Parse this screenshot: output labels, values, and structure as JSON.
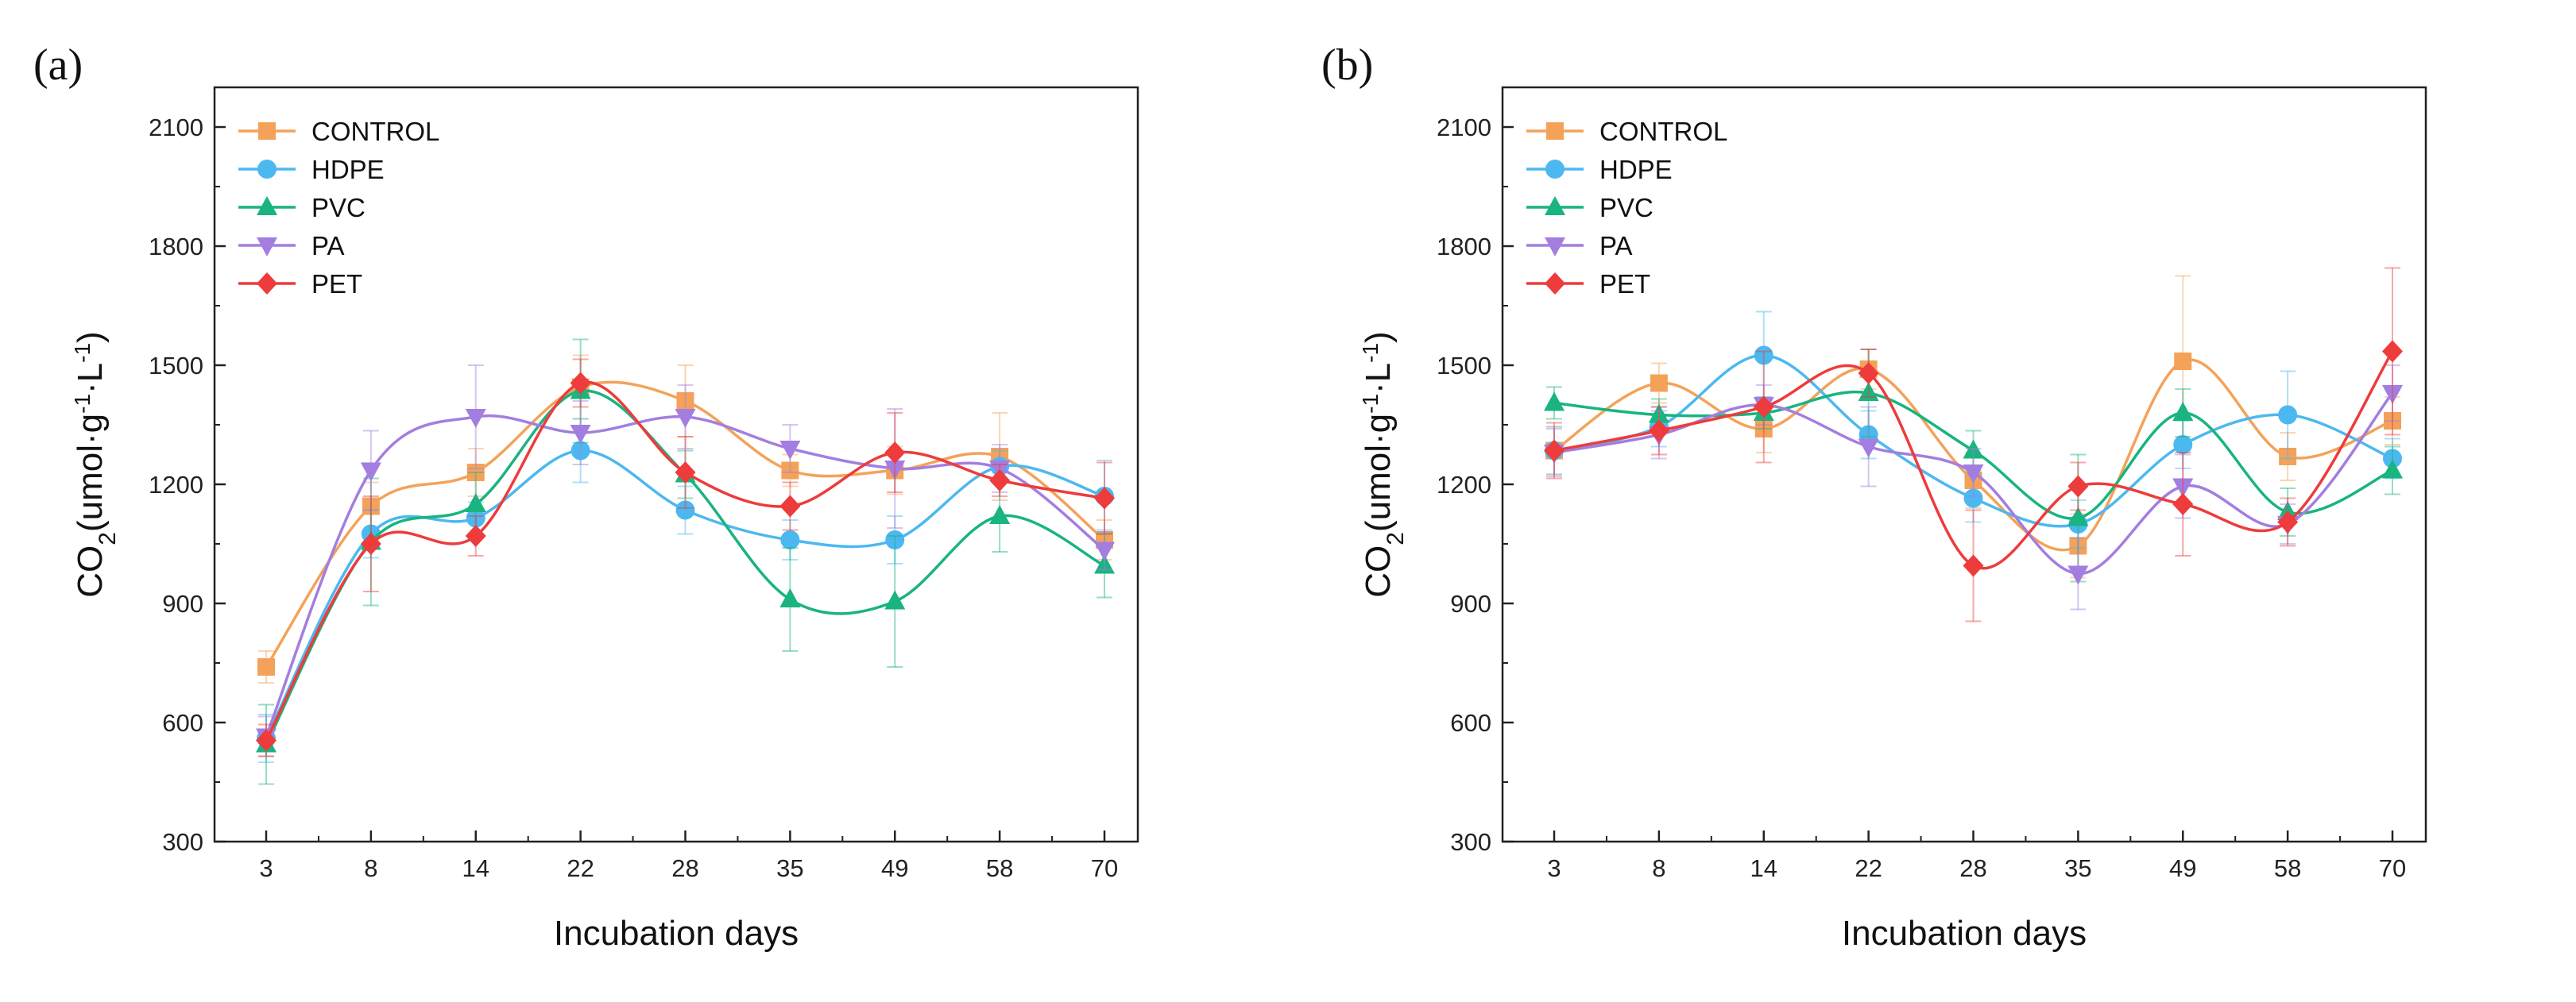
{
  "chart_data": [
    {
      "type": "line",
      "panel_label": "(a)",
      "xlabel": "Incubation days",
      "ylabel": "CO2(umol·g-1·L-1)",
      "categories": [
        "3",
        "8",
        "14",
        "22",
        "28",
        "35",
        "49",
        "58",
        "70"
      ],
      "ylim": [
        300,
        2200
      ],
      "yticks": [
        300,
        600,
        900,
        1200,
        1500,
        1800,
        2100
      ],
      "legend_position": "top-left",
      "series": [
        {
          "name": "CONTROL",
          "color": "#F4A259",
          "marker": "square",
          "values": [
            740,
            1145,
            1230,
            1445,
            1410,
            1235,
            1235,
            1270,
            1060
          ],
          "errors": [
            40,
            60,
            60,
            80,
            90,
            40,
            60,
            110,
            50
          ]
        },
        {
          "name": "HDPE",
          "color": "#4CB8F0",
          "marker": "circle",
          "values": [
            560,
            1075,
            1115,
            1285,
            1135,
            1060,
            1060,
            1245,
            1170
          ],
          "errors": [
            60,
            60,
            40,
            80,
            60,
            50,
            60,
            40,
            90
          ]
        },
        {
          "name": "PVC",
          "color": "#19B47F",
          "marker": "triangle-up",
          "values": [
            545,
            1055,
            1150,
            1435,
            1225,
            910,
            905,
            1120,
            995
          ],
          "errors": [
            100,
            160,
            80,
            130,
            60,
            130,
            165,
            90,
            80
          ]
        },
        {
          "name": "PA",
          "color": "#A37EE0",
          "marker": "triangle-down",
          "values": [
            565,
            1235,
            1370,
            1330,
            1370,
            1290,
            1240,
            1240,
            1035
          ],
          "errors": [
            50,
            100,
            130,
            80,
            80,
            60,
            150,
            60,
            50
          ]
        },
        {
          "name": "PET",
          "color": "#EE3B3B",
          "marker": "diamond",
          "values": [
            555,
            1050,
            1070,
            1455,
            1230,
            1145,
            1280,
            1210,
            1165
          ],
          "errors": [
            40,
            120,
            50,
            60,
            90,
            60,
            100,
            40,
            90
          ]
        }
      ]
    },
    {
      "type": "line",
      "panel_label": "(b)",
      "xlabel": "Incubation days",
      "ylabel": "CO2(umol·g-1·L-1)",
      "categories": [
        "3",
        "8",
        "14",
        "22",
        "28",
        "35",
        "49",
        "58",
        "70"
      ],
      "ylim": [
        300,
        2200
      ],
      "yticks": [
        300,
        600,
        900,
        1200,
        1500,
        1800,
        2100
      ],
      "legend_position": "top-left",
      "series": [
        {
          "name": "CONTROL",
          "color": "#F4A259",
          "marker": "square",
          "values": [
            1285,
            1455,
            1340,
            1490,
            1210,
            1045,
            1510,
            1270,
            1360
          ],
          "errors": [
            60,
            50,
            60,
            50,
            70,
            80,
            215,
            60,
            60
          ]
        },
        {
          "name": "HDPE",
          "color": "#4CB8F0",
          "marker": "circle",
          "values": [
            1285,
            1345,
            1525,
            1325,
            1165,
            1100,
            1300,
            1375,
            1265
          ],
          "errors": [
            60,
            50,
            110,
            60,
            60,
            60,
            60,
            110,
            50
          ]
        },
        {
          "name": "PVC",
          "color": "#19B47F",
          "marker": "triangle-up",
          "values": [
            1405,
            1375,
            1380,
            1430,
            1285,
            1115,
            1380,
            1130,
            1235
          ],
          "errors": [
            40,
            40,
            40,
            110,
            50,
            160,
            60,
            60,
            60
          ]
        },
        {
          "name": "PA",
          "color": "#A37EE0",
          "marker": "triangle-down",
          "values": [
            1280,
            1325,
            1400,
            1295,
            1230,
            975,
            1195,
            1100,
            1430
          ],
          "errors": [
            60,
            60,
            50,
            100,
            60,
            90,
            80,
            50,
            70
          ]
        },
        {
          "name": "PET",
          "color": "#EE3B3B",
          "marker": "diamond",
          "values": [
            1285,
            1335,
            1395,
            1480,
            995,
            1195,
            1150,
            1105,
            1535
          ],
          "errors": [
            70,
            60,
            140,
            60,
            140,
            60,
            130,
            60,
            210
          ]
        }
      ]
    }
  ]
}
